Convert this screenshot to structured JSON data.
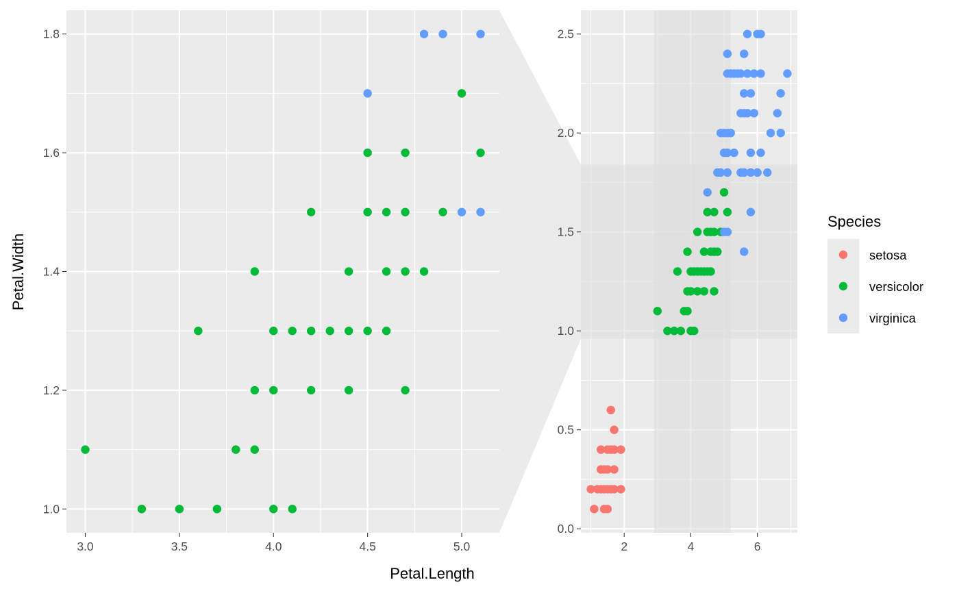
{
  "chart_data": [
    {
      "type": "scatter",
      "panel": "zoomed",
      "xlabel": "Petal.Length",
      "ylabel": "Petal.Width",
      "xlim": [
        2.9,
        5.2
      ],
      "ylim": [
        0.96,
        1.84
      ],
      "xticks": [
        3.0,
        3.5,
        4.0,
        4.5,
        5.0
      ],
      "xtick_labels": [
        "3.0",
        "3.5",
        "4.0",
        "4.5",
        "5.0"
      ],
      "yticks": [
        1.0,
        1.2,
        1.4,
        1.6,
        1.8
      ],
      "ytick_labels": [
        "1.0",
        "1.2",
        "1.4",
        "1.6",
        "1.8"
      ],
      "grid": true,
      "series": [
        {
          "name": "versicolor",
          "points": [
            [
              3.0,
              1.1
            ],
            [
              3.3,
              1.0
            ],
            [
              3.5,
              1.0
            ],
            [
              3.7,
              1.0
            ],
            [
              4.0,
              1.0
            ],
            [
              4.1,
              1.0
            ],
            [
              3.8,
              1.1
            ],
            [
              3.9,
              1.1
            ],
            [
              3.9,
              1.2
            ],
            [
              4.0,
              1.2
            ],
            [
              4.2,
              1.2
            ],
            [
              4.4,
              1.2
            ],
            [
              4.7,
              1.2
            ],
            [
              3.6,
              1.3
            ],
            [
              4.0,
              1.3
            ],
            [
              4.1,
              1.3
            ],
            [
              4.2,
              1.3
            ],
            [
              4.3,
              1.3
            ],
            [
              4.4,
              1.3
            ],
            [
              4.5,
              1.3
            ],
            [
              4.6,
              1.3
            ],
            [
              3.9,
              1.4
            ],
            [
              4.4,
              1.4
            ],
            [
              4.6,
              1.4
            ],
            [
              4.7,
              1.4
            ],
            [
              4.8,
              1.4
            ],
            [
              4.2,
              1.5
            ],
            [
              4.5,
              1.5
            ],
            [
              4.6,
              1.5
            ],
            [
              4.7,
              1.5
            ],
            [
              4.9,
              1.5
            ],
            [
              4.5,
              1.6
            ],
            [
              4.7,
              1.6
            ],
            [
              5.1,
              1.6
            ],
            [
              5.0,
              1.7
            ]
          ]
        },
        {
          "name": "virginica",
          "points": [
            [
              5.0,
              1.5
            ],
            [
              5.1,
              1.5
            ],
            [
              4.5,
              1.7
            ],
            [
              4.8,
              1.8
            ],
            [
              4.9,
              1.8
            ],
            [
              5.1,
              1.8
            ]
          ]
        }
      ]
    },
    {
      "type": "scatter",
      "panel": "overview",
      "xlim": [
        0.7,
        7.2
      ],
      "ylim": [
        -0.02,
        2.62
      ],
      "xticks": [
        2,
        4,
        6
      ],
      "xtick_labels": [
        "2",
        "4",
        "6"
      ],
      "yticks": [
        0.0,
        0.5,
        1.0,
        1.5,
        2.0,
        2.5
      ],
      "ytick_labels": [
        "0.0",
        "0.5",
        "1.0",
        "1.5",
        "2.0",
        "2.5"
      ],
      "grid": true,
      "zoom_region": {
        "x": [
          2.9,
          5.2
        ],
        "y": [
          0.96,
          1.84
        ]
      },
      "series": [
        {
          "name": "setosa",
          "points": [
            [
              1.0,
              0.2
            ],
            [
              1.1,
              0.1
            ],
            [
              1.2,
              0.2
            ],
            [
              1.3,
              0.2
            ],
            [
              1.4,
              0.2
            ],
            [
              1.5,
              0.2
            ],
            [
              1.6,
              0.2
            ],
            [
              1.7,
              0.2
            ],
            [
              1.9,
              0.2
            ],
            [
              1.4,
              0.1
            ],
            [
              1.5,
              0.1
            ],
            [
              1.3,
              0.3
            ],
            [
              1.4,
              0.3
            ],
            [
              1.5,
              0.3
            ],
            [
              1.7,
              0.3
            ],
            [
              1.3,
              0.4
            ],
            [
              1.5,
              0.4
            ],
            [
              1.6,
              0.4
            ],
            [
              1.7,
              0.4
            ],
            [
              1.9,
              0.4
            ],
            [
              1.7,
              0.5
            ],
            [
              1.6,
              0.6
            ]
          ]
        },
        {
          "name": "versicolor",
          "points": [
            [
              3.0,
              1.1
            ],
            [
              3.3,
              1.0
            ],
            [
              3.5,
              1.0
            ],
            [
              3.7,
              1.0
            ],
            [
              4.0,
              1.0
            ],
            [
              4.1,
              1.0
            ],
            [
              3.8,
              1.1
            ],
            [
              3.9,
              1.1
            ],
            [
              3.9,
              1.2
            ],
            [
              4.0,
              1.2
            ],
            [
              4.2,
              1.2
            ],
            [
              4.4,
              1.2
            ],
            [
              4.7,
              1.2
            ],
            [
              3.6,
              1.3
            ],
            [
              4.0,
              1.3
            ],
            [
              4.1,
              1.3
            ],
            [
              4.2,
              1.3
            ],
            [
              4.3,
              1.3
            ],
            [
              4.4,
              1.3
            ],
            [
              4.5,
              1.3
            ],
            [
              4.6,
              1.3
            ],
            [
              3.9,
              1.4
            ],
            [
              4.4,
              1.4
            ],
            [
              4.6,
              1.4
            ],
            [
              4.7,
              1.4
            ],
            [
              4.8,
              1.4
            ],
            [
              4.2,
              1.5
            ],
            [
              4.5,
              1.5
            ],
            [
              4.6,
              1.5
            ],
            [
              4.7,
              1.5
            ],
            [
              4.9,
              1.5
            ],
            [
              4.5,
              1.6
            ],
            [
              4.7,
              1.6
            ],
            [
              5.1,
              1.6
            ],
            [
              5.0,
              1.7
            ]
          ]
        },
        {
          "name": "virginica",
          "points": [
            [
              5.6,
              1.4
            ],
            [
              5.0,
              1.5
            ],
            [
              5.1,
              1.5
            ],
            [
              5.8,
              1.6
            ],
            [
              4.5,
              1.7
            ],
            [
              4.8,
              1.8
            ],
            [
              4.9,
              1.8
            ],
            [
              5.1,
              1.8
            ],
            [
              5.5,
              1.8
            ],
            [
              5.6,
              1.8
            ],
            [
              5.8,
              1.8
            ],
            [
              6.0,
              1.8
            ],
            [
              6.3,
              1.8
            ],
            [
              5.0,
              1.9
            ],
            [
              5.1,
              1.9
            ],
            [
              5.3,
              1.9
            ],
            [
              5.8,
              1.9
            ],
            [
              6.1,
              1.9
            ],
            [
              4.9,
              2.0
            ],
            [
              5.0,
              2.0
            ],
            [
              5.1,
              2.0
            ],
            [
              5.2,
              2.0
            ],
            [
              6.4,
              2.0
            ],
            [
              6.7,
              2.0
            ],
            [
              5.5,
              2.1
            ],
            [
              5.6,
              2.1
            ],
            [
              5.7,
              2.1
            ],
            [
              5.9,
              2.1
            ],
            [
              6.6,
              2.1
            ],
            [
              5.6,
              2.2
            ],
            [
              5.8,
              2.2
            ],
            [
              6.7,
              2.2
            ],
            [
              5.1,
              2.3
            ],
            [
              5.2,
              2.3
            ],
            [
              5.3,
              2.3
            ],
            [
              5.4,
              2.3
            ],
            [
              5.5,
              2.3
            ],
            [
              5.7,
              2.3
            ],
            [
              5.9,
              2.3
            ],
            [
              6.1,
              2.3
            ],
            [
              6.9,
              2.3
            ],
            [
              5.1,
              2.4
            ],
            [
              5.6,
              2.4
            ],
            [
              5.7,
              2.5
            ],
            [
              6.0,
              2.5
            ],
            [
              6.1,
              2.5
            ]
          ]
        }
      ]
    }
  ],
  "legend": {
    "title": "Species",
    "placement": "right",
    "items": [
      {
        "label": "setosa",
        "color": "#F8766D"
      },
      {
        "label": "versicolor",
        "color": "#00BA38"
      },
      {
        "label": "virginica",
        "color": "#619CFF"
      }
    ]
  },
  "colors": {
    "setosa": "#F8766D",
    "versicolor": "#00BA38",
    "virginica": "#619CFF",
    "panel_background": "#EBEBEB",
    "grid": "#FFFFFF",
    "zoom_band": "#DDDDDD"
  }
}
